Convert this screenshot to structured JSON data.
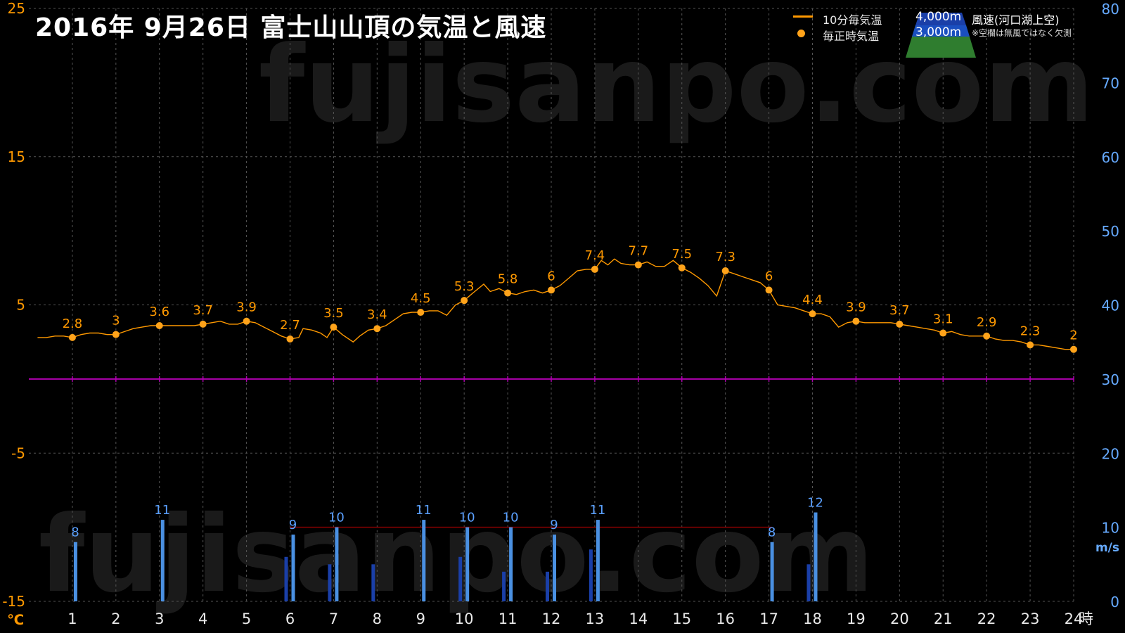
{
  "title": "2016年 9月26日 富士山山頂の気温と風速",
  "watermark": "fujisanpo.com",
  "legend": {
    "temp10": "10分毎気温",
    "tempHourly": "毎正時気温",
    "alt4000": "4,000m",
    "alt3000": "3,000m",
    "windLabel": "風速(河口湖上空)",
    "windNote": "※空欄は無風ではなく欠測"
  },
  "colors": {
    "temp": "#ff9900",
    "wind4000": "#4a90e2",
    "wind3000": "#1a3fa8",
    "zero_line": "#b000b0",
    "left_axis": "#ff9900",
    "right_axis": "#66aaff"
  },
  "chart_data": {
    "type": "line",
    "x": [
      1,
      2,
      3,
      4,
      5,
      6,
      7,
      8,
      9,
      10,
      11,
      12,
      13,
      14,
      15,
      16,
      17,
      18,
      19,
      20,
      21,
      22,
      23,
      24
    ],
    "xlim": [
      0,
      24
    ],
    "x_unit": "時",
    "left_axis": {
      "unit": "℃",
      "ticks": [
        25,
        15,
        5,
        -5,
        -15
      ],
      "ylim": [
        -15,
        25
      ]
    },
    "right_axis": {
      "unit": "m/s",
      "ticks": [
        80,
        70,
        60,
        50,
        40,
        30,
        20,
        10,
        0
      ],
      "ylim": [
        0,
        80
      ]
    },
    "temp_10min": [
      [
        0.2,
        2.8
      ],
      [
        0.4,
        2.8
      ],
      [
        0.6,
        2.9
      ],
      [
        0.8,
        2.9
      ],
      [
        1.0,
        2.8
      ],
      [
        1.2,
        3.0
      ],
      [
        1.4,
        3.1
      ],
      [
        1.6,
        3.1
      ],
      [
        1.8,
        3.0
      ],
      [
        2.0,
        3.0
      ],
      [
        2.2,
        3.2
      ],
      [
        2.4,
        3.4
      ],
      [
        2.6,
        3.5
      ],
      [
        2.8,
        3.6
      ],
      [
        3.0,
        3.6
      ],
      [
        3.2,
        3.6
      ],
      [
        3.4,
        3.6
      ],
      [
        3.6,
        3.6
      ],
      [
        3.8,
        3.6
      ],
      [
        4.0,
        3.7
      ],
      [
        4.2,
        3.8
      ],
      [
        4.4,
        3.9
      ],
      [
        4.6,
        3.7
      ],
      [
        4.8,
        3.7
      ],
      [
        5.0,
        3.9
      ],
      [
        5.2,
        3.8
      ],
      [
        5.4,
        3.5
      ],
      [
        5.6,
        3.2
      ],
      [
        5.8,
        2.9
      ],
      [
        6.0,
        2.7
      ],
      [
        6.2,
        2.8
      ],
      [
        6.3,
        3.4
      ],
      [
        6.5,
        3.3
      ],
      [
        6.7,
        3.1
      ],
      [
        6.85,
        2.8
      ],
      [
        7.0,
        3.5
      ],
      [
        7.2,
        3.0
      ],
      [
        7.45,
        2.5
      ],
      [
        7.6,
        2.9
      ],
      [
        7.8,
        3.3
      ],
      [
        8.0,
        3.4
      ],
      [
        8.2,
        3.6
      ],
      [
        8.4,
        4.0
      ],
      [
        8.6,
        4.4
      ],
      [
        8.8,
        4.5
      ],
      [
        9.0,
        4.5
      ],
      [
        9.2,
        4.6
      ],
      [
        9.4,
        4.6
      ],
      [
        9.6,
        4.3
      ],
      [
        9.8,
        5.0
      ],
      [
        10.0,
        5.3
      ],
      [
        10.2,
        5.8
      ],
      [
        10.45,
        6.4
      ],
      [
        10.6,
        5.9
      ],
      [
        10.8,
        6.1
      ],
      [
        11.0,
        5.8
      ],
      [
        11.2,
        5.7
      ],
      [
        11.4,
        5.9
      ],
      [
        11.6,
        6.0
      ],
      [
        11.8,
        5.8
      ],
      [
        12.0,
        6.0
      ],
      [
        12.2,
        6.3
      ],
      [
        12.4,
        6.8
      ],
      [
        12.6,
        7.3
      ],
      [
        12.8,
        7.4
      ],
      [
        13.0,
        7.4
      ],
      [
        13.15,
        8.0
      ],
      [
        13.3,
        7.7
      ],
      [
        13.45,
        8.1
      ],
      [
        13.6,
        7.8
      ],
      [
        13.8,
        7.7
      ],
      [
        14.0,
        7.7
      ],
      [
        14.2,
        7.9
      ],
      [
        14.4,
        7.6
      ],
      [
        14.6,
        7.6
      ],
      [
        14.8,
        8.0
      ],
      [
        15.0,
        7.5
      ],
      [
        15.2,
        7.2
      ],
      [
        15.4,
        6.8
      ],
      [
        15.6,
        6.3
      ],
      [
        15.8,
        5.6
      ],
      [
        16.0,
        7.3
      ],
      [
        16.2,
        7.1
      ],
      [
        16.4,
        6.9
      ],
      [
        16.6,
        6.7
      ],
      [
        16.8,
        6.5
      ],
      [
        17.0,
        6.0
      ],
      [
        17.2,
        5.0
      ],
      [
        17.4,
        4.9
      ],
      [
        17.6,
        4.8
      ],
      [
        17.8,
        4.6
      ],
      [
        18.0,
        4.4
      ],
      [
        18.2,
        4.4
      ],
      [
        18.4,
        4.2
      ],
      [
        18.6,
        3.5
      ],
      [
        18.8,
        3.8
      ],
      [
        19.0,
        3.9
      ],
      [
        19.2,
        3.8
      ],
      [
        19.4,
        3.8
      ],
      [
        19.6,
        3.8
      ],
      [
        19.8,
        3.8
      ],
      [
        20.0,
        3.7
      ],
      [
        20.2,
        3.6
      ],
      [
        20.4,
        3.5
      ],
      [
        20.6,
        3.4
      ],
      [
        20.8,
        3.3
      ],
      [
        21.0,
        3.1
      ],
      [
        21.2,
        3.2
      ],
      [
        21.4,
        3.0
      ],
      [
        21.6,
        2.9
      ],
      [
        21.8,
        2.9
      ],
      [
        22.0,
        2.9
      ],
      [
        22.2,
        2.7
      ],
      [
        22.4,
        2.6
      ],
      [
        22.6,
        2.6
      ],
      [
        22.8,
        2.5
      ],
      [
        23.0,
        2.3
      ],
      [
        23.2,
        2.3
      ],
      [
        23.4,
        2.2
      ],
      [
        23.6,
        2.1
      ],
      [
        23.8,
        2.0
      ],
      [
        24.0,
        2.0
      ]
    ],
    "temp_hourly": [
      2.8,
      3,
      3.6,
      3.7,
      3.9,
      2.7,
      3.5,
      3.4,
      4.5,
      5.3,
      5.8,
      6,
      7.4,
      7.7,
      7.5,
      7.3,
      6,
      4.4,
      3.9,
      3.7,
      3.1,
      2.9,
      2.3,
      2
    ],
    "temp_hourly_labels": [
      "2.8",
      "3",
      "3.6",
      "3.7",
      "3.9",
      "2.7",
      "3.5",
      "3.4",
      "4.5",
      "5.3",
      "5.8",
      "6",
      "7.4",
      "7.7",
      "7.5",
      "7.3",
      "6",
      "4.4",
      "3.9",
      "3.7",
      "3.1",
      "2.9",
      "2.3",
      "2"
    ],
    "wind_4000m": [
      {
        "x": 1,
        "value": 8
      },
      {
        "x": 3,
        "value": 11
      },
      {
        "x": 6,
        "value": 9
      },
      {
        "x": 7,
        "value": 10
      },
      {
        "x": 9,
        "value": 11
      },
      {
        "x": 10,
        "value": 10
      },
      {
        "x": 11,
        "value": 10
      },
      {
        "x": 12,
        "value": 9
      },
      {
        "x": 13,
        "value": 11
      },
      {
        "x": 17,
        "value": 8
      },
      {
        "x": 18,
        "value": 12
      }
    ],
    "wind_4000m_labels": [
      "8",
      "11",
      "9",
      "10",
      "11",
      "10",
      "10",
      "9",
      "11",
      "8",
      "12"
    ],
    "wind_3000m": [
      {
        "x": 6,
        "value": 6
      },
      {
        "x": 7,
        "value": 5
      },
      {
        "x": 8,
        "value": 5
      },
      {
        "x": 10,
        "value": 6
      },
      {
        "x": 11,
        "value": 4
      },
      {
        "x": 12,
        "value": 4
      },
      {
        "x": 13,
        "value": 7
      },
      {
        "x": 18,
        "value": 5
      }
    ],
    "x_tick_labels": [
      "1",
      "2",
      "3",
      "4",
      "5",
      "6",
      "7",
      "8",
      "9",
      "10",
      "11",
      "12",
      "13",
      "14",
      "15",
      "16",
      "17",
      "18",
      "19",
      "20",
      "21",
      "22",
      "23",
      "24"
    ],
    "left_tick_labels": [
      "25",
      "15",
      "5",
      "-5",
      "-15"
    ],
    "right_tick_labels": [
      "80",
      "70",
      "60",
      "50",
      "40",
      "30",
      "20",
      "10",
      "0"
    ],
    "zero_line": 0
  }
}
